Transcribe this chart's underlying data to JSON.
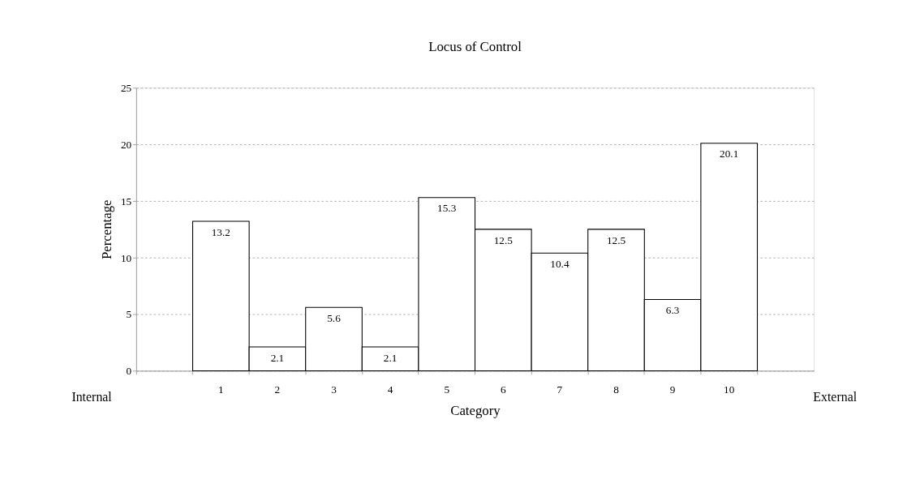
{
  "chart_data": {
    "type": "bar",
    "title": "Locus of Control",
    "xlabel": "Category",
    "ylabel": "Percentage",
    "categories": [
      null,
      "1",
      "2",
      "3",
      "4",
      "5",
      "6",
      "7",
      "8",
      "9",
      "10",
      null
    ],
    "values": [
      null,
      13.2,
      2.1,
      5.6,
      2.1,
      15.3,
      12.5,
      10.4,
      12.5,
      6.3,
      20.1,
      null
    ],
    "color": "#ffffff",
    "ylim": [
      0,
      25
    ],
    "yticks": [
      0,
      5,
      10,
      15,
      20,
      25
    ],
    "grid": "y",
    "data_labels": true,
    "annotations": [
      "Internal",
      "External"
    ]
  }
}
